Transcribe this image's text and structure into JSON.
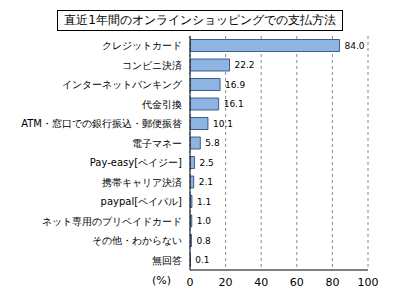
{
  "chart_data": {
    "type": "bar",
    "title": "直近1年間のオンラインショッピングでの支払方法",
    "orientation": "horizontal",
    "categories": [
      "クレジットカード",
      "コンビニ決済",
      "インターネットバンキング",
      "代金引換",
      "ATM・窓口での銀行振込・郵便振替",
      "電子マネー",
      "Pay-easy[ペイジー]",
      "携帯キャリア決済",
      "paypal[ペイパル]",
      "ネット専用のプリペイドカード",
      "その他・わからない",
      "無回答"
    ],
    "values": [
      84.0,
      22.2,
      16.9,
      16.1,
      10.1,
      5.8,
      2.5,
      2.1,
      1.1,
      1.0,
      0.8,
      0.1
    ],
    "value_labels": [
      "84.0",
      "22.2",
      "16.9",
      "16.1",
      "10.1",
      "5.8",
      "2.5",
      "2.1",
      "1.1",
      "1.0",
      "0.8",
      "0.1"
    ],
    "color": "#8db4e2",
    "xlim": [
      0,
      100
    ],
    "xticks": [
      0,
      20,
      40,
      60,
      80,
      100
    ],
    "xlabel": "(%)",
    "grid": true,
    "data_labels": true
  }
}
